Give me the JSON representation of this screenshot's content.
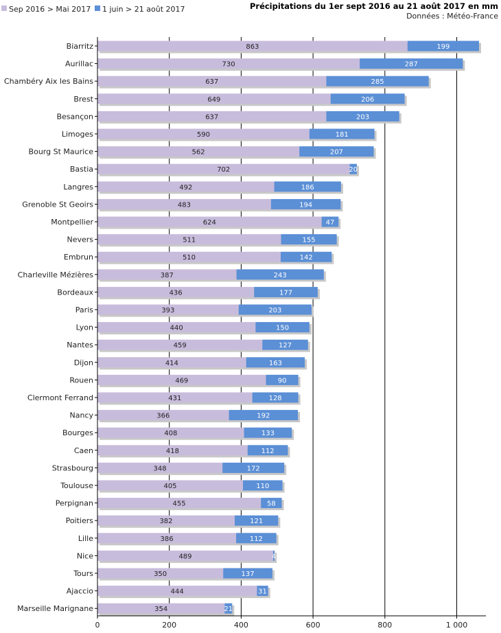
{
  "chart_data": {
    "type": "bar",
    "orientation": "horizontal",
    "stacked": true,
    "title": "Précipitations du 1er sept 2016 au 21 août 2017 en mm",
    "subtitle": "Données : Météo-France",
    "xlim": [
      0,
      1080
    ],
    "x_ticks": [
      0,
      200,
      400,
      600,
      800,
      1000
    ],
    "x_tick_labels": [
      "0",
      "200",
      "400",
      "600",
      "800",
      "1 000"
    ],
    "grid": "vertical",
    "legend_position": "top-left",
    "colors": {
      "series1": "#c8bcdc",
      "series2": "#5b8fd6",
      "grid": "#000000",
      "shadow": "#c8c8c8"
    },
    "categories": [
      "Biarritz",
      "Aurillac",
      "Chambéry Aix les Bains",
      "Brest",
      "Besançon",
      "Limoges",
      "Bourg St Maurice",
      "Bastia",
      "Langres",
      "Grenoble St Geoirs",
      "Montpellier",
      "Nevers",
      "Embrun",
      "Charleville Mézières",
      "Bordeaux",
      "Paris",
      "Lyon",
      "Nantes",
      "Dijon",
      "Rouen",
      "Clermont Ferrand",
      "Nancy",
      "Bourges",
      "Caen",
      "Strasbourg",
      "Toulouse",
      "Perpignan",
      "Poitiers",
      "Lille",
      "Nice",
      "Tours",
      "Ajaccio",
      "Marseille Marignane"
    ],
    "series": [
      {
        "name": "Sep 2016 > Mai 2017",
        "values": [
          863,
          730,
          637,
          649,
          637,
          590,
          562,
          702,
          492,
          483,
          624,
          511,
          510,
          387,
          436,
          393,
          440,
          459,
          414,
          469,
          431,
          366,
          408,
          418,
          348,
          405,
          455,
          382,
          386,
          489,
          350,
          444,
          354
        ]
      },
      {
        "name": "1 juin > 21 août 2017",
        "values": [
          199,
          287,
          285,
          206,
          203,
          181,
          207,
          20,
          186,
          194,
          47,
          155,
          142,
          243,
          177,
          203,
          150,
          127,
          163,
          90,
          128,
          192,
          133,
          112,
          172,
          110,
          58,
          121,
          112,
          4,
          137,
          31,
          21
        ]
      }
    ]
  }
}
